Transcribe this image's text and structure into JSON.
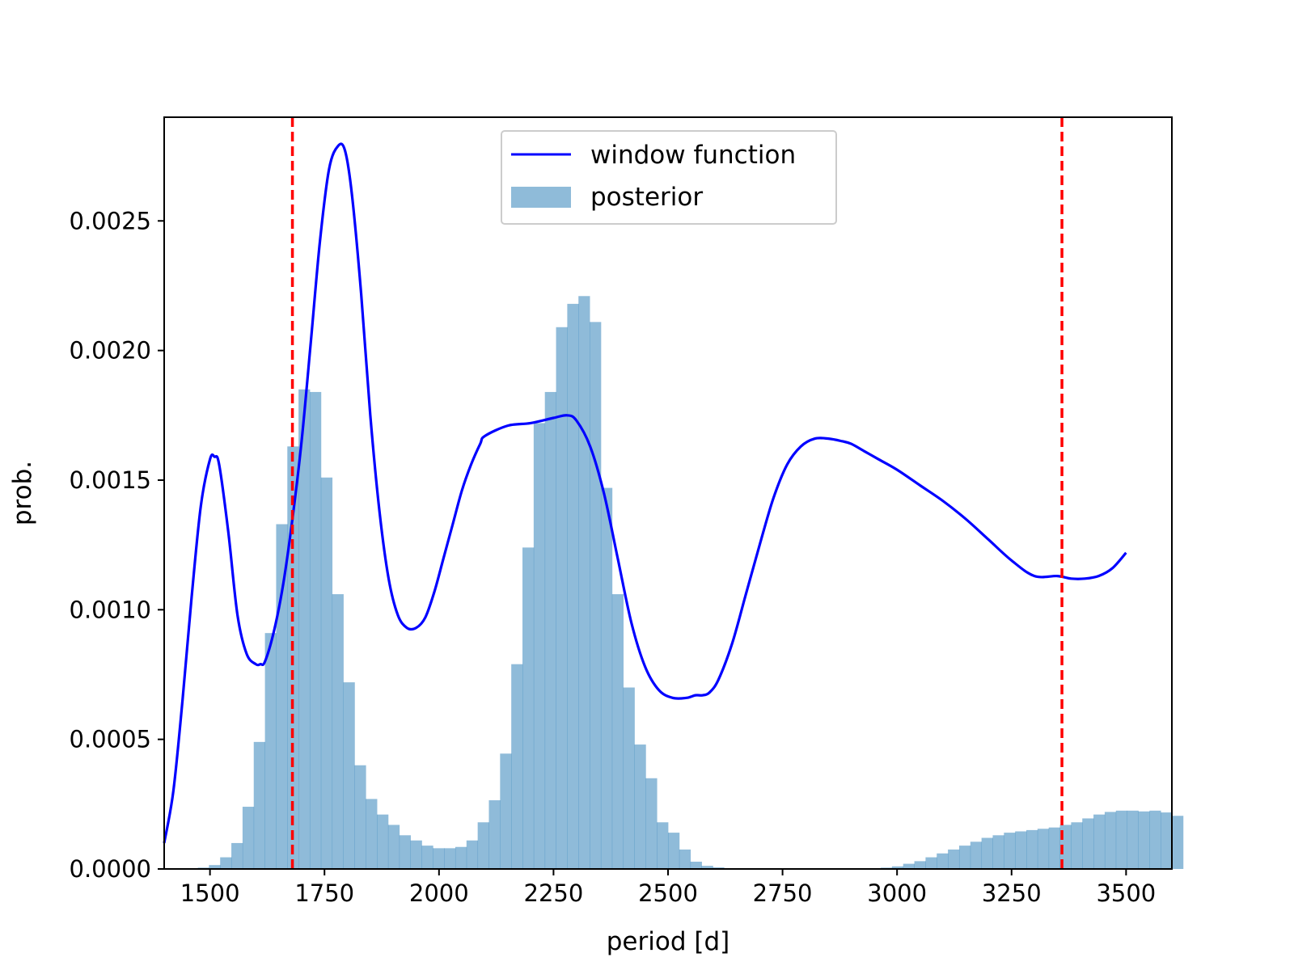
{
  "chart_data": {
    "type": "bar",
    "xlabel": "period [d]",
    "ylabel": "prob.",
    "xlim": [
      1400,
      3600
    ],
    "ylim": [
      0,
      0.0029
    ],
    "xticks": [
      1500,
      1750,
      2000,
      2250,
      2500,
      2750,
      3000,
      3250,
      3500
    ],
    "xtick_labels": [
      "1500",
      "1750",
      "2000",
      "2250",
      "2500",
      "2750",
      "3000",
      "3250",
      "3500"
    ],
    "yticks": [
      0,
      0.0005,
      0.001,
      0.0015,
      0.002,
      0.0025
    ],
    "ytick_labels": [
      "0.0000",
      "0.0005",
      "0.0010",
      "0.0015",
      "0.0020",
      "0.0025"
    ],
    "legend": {
      "placement": "upper center",
      "entries": [
        {
          "label": "window function",
          "kind": "line",
          "color": "#0000ff"
        },
        {
          "label": "posterior",
          "kind": "patch",
          "color": "#1f77b4",
          "alpha": 0.5
        }
      ]
    },
    "vlines": {
      "x": [
        1680,
        3360
      ],
      "color": "#ff0000",
      "style": "dashed"
    },
    "histogram": {
      "name": "posterior",
      "color": "#1f77b4",
      "alpha": 0.5,
      "bin_start": 1400,
      "bin_width": 24.4444,
      "values": [
        0,
        0,
        0,
        5e-06,
        1.5e-05,
        4.5e-05,
        0.0001,
        0.00024,
        0.00049,
        0.00091,
        0.00133,
        0.00163,
        0.00185,
        0.00184,
        0.00151,
        0.00106,
        0.00072,
        0.0004,
        0.00027,
        0.00021,
        0.00017,
        0.00013,
        0.00011,
        9e-05,
        8e-05,
        8e-05,
        8.5e-05,
        0.00011,
        0.00018,
        0.000265,
        0.000445,
        0.00079,
        0.00124,
        0.00172,
        0.00184,
        0.00209,
        0.00218,
        0.00221,
        0.00211,
        0.00147,
        0.00106,
        0.0007,
        0.00048,
        0.00035,
        0.00018,
        0.00014,
        7.5e-05,
        2.8e-05,
        1.2e-05,
        6e-06,
        3e-06,
        1e-06,
        0,
        0,
        0,
        0,
        0,
        0,
        0,
        0,
        0,
        0,
        0,
        2e-06,
        5e-06,
        1e-05,
        2e-05,
        3e-05,
        4.5e-05,
        6e-05,
        7.5e-05,
        9e-05,
        0.000105,
        0.00012,
        0.00013,
        0.00014,
        0.000145,
        0.00015,
        0.000155,
        0.00016,
        0.00017,
        0.00018,
        0.000195,
        0.00021,
        0.00022,
        0.000225,
        0.000225,
        0.000222,
        0.000225,
        0.000218,
        0.000205
      ]
    },
    "window_function": {
      "name": "window function",
      "color": "#0000ff",
      "x": [
        1400,
        1420,
        1440,
        1460,
        1480,
        1500,
        1510,
        1520,
        1540,
        1560,
        1580,
        1600,
        1610,
        1620,
        1640,
        1660,
        1680,
        1700,
        1720,
        1740,
        1760,
        1780,
        1795,
        1810,
        1830,
        1850,
        1870,
        1890,
        1910,
        1930,
        1950,
        1970,
        1990,
        2010,
        2030,
        2050,
        2070,
        2090,
        2100,
        2150,
        2200,
        2250,
        2280,
        2300,
        2330,
        2360,
        2390,
        2420,
        2450,
        2480,
        2510,
        2540,
        2560,
        2575,
        2590,
        2610,
        2640,
        2670,
        2700,
        2730,
        2760,
        2790,
        2820,
        2850,
        2880,
        2900,
        2930,
        2960,
        3000,
        3050,
        3100,
        3150,
        3200,
        3250,
        3300,
        3350,
        3380,
        3410,
        3440,
        3470,
        3500
      ],
      "y": [
        0.0001,
        0.0003,
        0.00065,
        0.00105,
        0.0014,
        0.00158,
        0.00159,
        0.00156,
        0.0013,
        0.00098,
        0.00083,
        0.00079,
        0.00079,
        0.0008,
        0.00092,
        0.0011,
        0.00135,
        0.00165,
        0.00203,
        0.00242,
        0.0027,
        0.00279,
        0.00277,
        0.0026,
        0.00222,
        0.00175,
        0.00138,
        0.00112,
        0.00098,
        0.00093,
        0.00093,
        0.00097,
        0.00107,
        0.0012,
        0.00133,
        0.00146,
        0.00156,
        0.00164,
        0.00167,
        0.00171,
        0.00172,
        0.00174,
        0.00175,
        0.00173,
        0.00163,
        0.00145,
        0.0012,
        0.00095,
        0.00078,
        0.00069,
        0.00066,
        0.00066,
        0.00067,
        0.00067,
        0.00068,
        0.00073,
        0.00087,
        0.00106,
        0.00125,
        0.00143,
        0.00156,
        0.00163,
        0.00166,
        0.00166,
        0.00165,
        0.00164,
        0.00161,
        0.00158,
        0.00154,
        0.00148,
        0.00142,
        0.00135,
        0.00127,
        0.00119,
        0.00113,
        0.00113,
        0.00112,
        0.00112,
        0.00113,
        0.00116,
        0.00122
      ]
    }
  }
}
